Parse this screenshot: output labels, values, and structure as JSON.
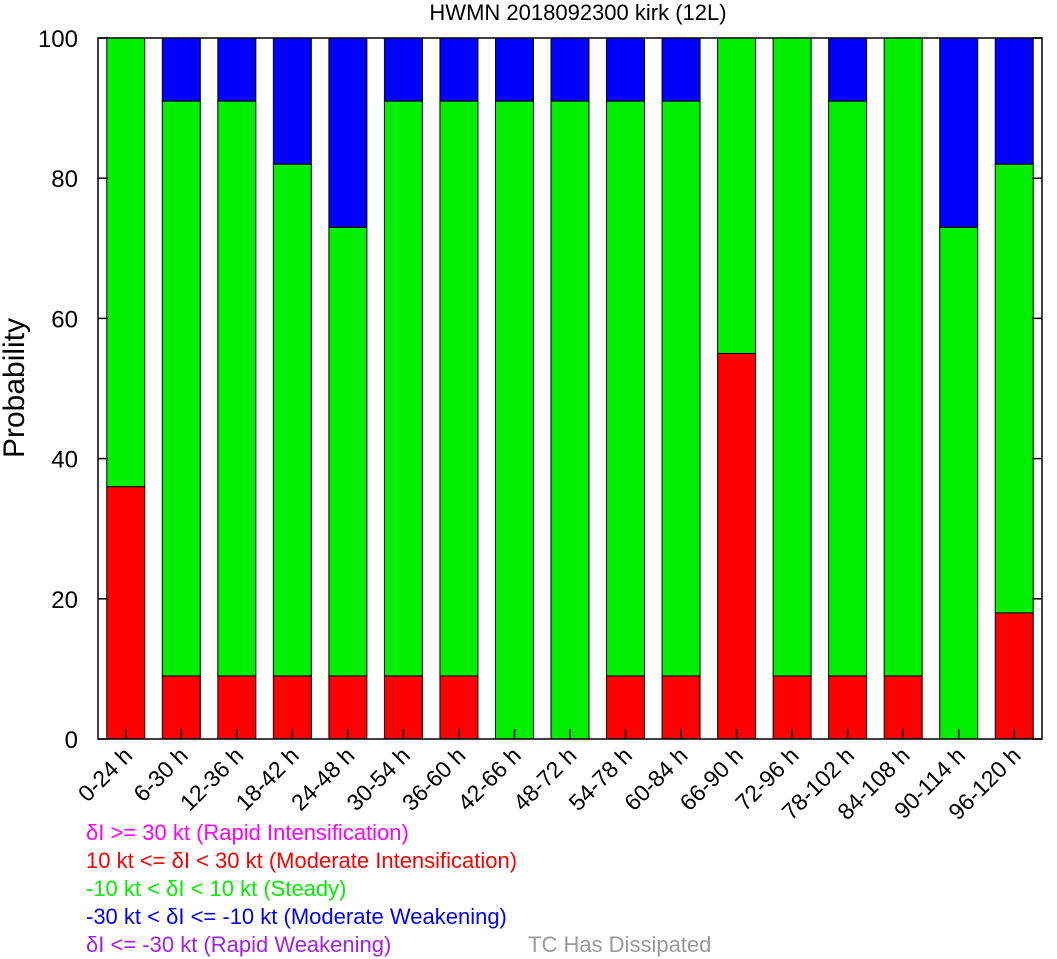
{
  "chart_data": {
    "type": "bar",
    "stacked": true,
    "title": "HWMN 2018092300 kirk (12L)",
    "ylabel": "Probability",
    "ylim": [
      0,
      100
    ],
    "yticks": [
      "0",
      "20",
      "40",
      "60",
      "80",
      "100"
    ],
    "categories": [
      "0-24 h",
      "6-30 h",
      "12-36 h",
      "18-42 h",
      "24-48 h",
      "30-54 h",
      "36-60 h",
      "42-66 h",
      "48-72 h",
      "54-78 h",
      "60-84 h",
      "66-90 h",
      "72-96 h",
      "78-102 h",
      "84-108 h",
      "90-114 h",
      "96-120 h"
    ],
    "series": [
      {
        "name": "10 kt <= δI < 30 kt (Moderate Intensification)",
        "color": "#ff0000",
        "values": [
          36,
          9,
          9,
          9,
          9,
          9,
          9,
          0,
          0,
          9,
          9,
          55,
          9,
          9,
          9,
          0,
          18
        ]
      },
      {
        "name": "-10 kt < δI < 10 kt (Steady)",
        "color": "#00ee00",
        "values": [
          64,
          82,
          82,
          73,
          64,
          82,
          82,
          91,
          91,
          82,
          82,
          45,
          91,
          82,
          91,
          73,
          64
        ]
      },
      {
        "name": "-30 kt < δI <= -10 kt (Moderate Weakening)",
        "color": "#0000ff",
        "values": [
          0,
          9,
          9,
          18,
          27,
          9,
          9,
          9,
          9,
          9,
          9,
          0,
          0,
          9,
          0,
          27,
          18
        ]
      }
    ],
    "grid": false
  },
  "legend": [
    {
      "text": "δI >= 30 kt (Rapid Intensification)",
      "color": "#ff00ff"
    },
    {
      "text": "10 kt <= δI < 30 kt (Moderate Intensification)",
      "color": "#ff0000"
    },
    {
      "text": "-10 kt < δI < 10 kt (Steady)",
      "color": "#00ee00"
    },
    {
      "text": "-30 kt < δI <= -10 kt (Moderate Weakening)",
      "color": "#0000ff"
    },
    {
      "text": "δI <= -30 kt (Rapid Weakening)",
      "color": "#a020f0"
    },
    {
      "text": "TC Has Dissipated",
      "color": "#999999"
    }
  ]
}
